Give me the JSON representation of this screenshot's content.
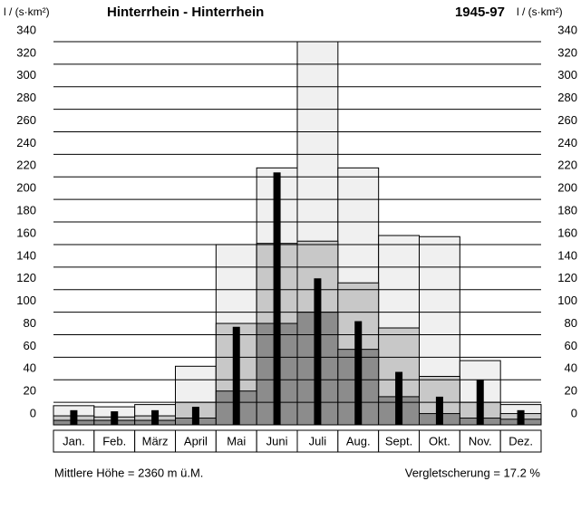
{
  "chart_data": {
    "type": "bar",
    "title": "Hinterrhein - Hinterrhein",
    "period": "1945-97",
    "y_label": "l / (s·km²)",
    "categories": [
      "Jan.",
      "Feb.",
      "März",
      "April",
      "Mai",
      "Juni",
      "Juli",
      "Aug.",
      "Sept.",
      "Okt.",
      "Nov.",
      "Dez."
    ],
    "series": [
      {
        "color": "#f0f0f0",
        "values": [
          17,
          16,
          18,
          52,
          160,
          228,
          340,
          228,
          168,
          167,
          57,
          18
        ]
      },
      {
        "color": "#c8c8c8",
        "values": [
          8,
          7,
          8,
          20,
          90,
          161,
          163,
          126,
          86,
          43,
          20,
          10
        ]
      },
      {
        "color": "#8c8c8c",
        "values": [
          4,
          4,
          4,
          6,
          30,
          90,
          100,
          67,
          25,
          10,
          6,
          5
        ]
      }
    ],
    "mean": {
      "color": "#000000",
      "values": [
        13,
        12,
        13,
        16,
        87,
        224,
        130,
        92,
        47,
        25,
        40,
        13
      ]
    },
    "ylim": [
      0,
      340
    ],
    "yticks": [
      0,
      20,
      40,
      60,
      80,
      100,
      120,
      140,
      160,
      180,
      200,
      220,
      240,
      260,
      280,
      300,
      320,
      340
    ],
    "grid": true,
    "footer_left": "Mittlere Höhe = 2360 m ü.M.",
    "footer_right": "Vergletscherung = 17.2 %"
  }
}
